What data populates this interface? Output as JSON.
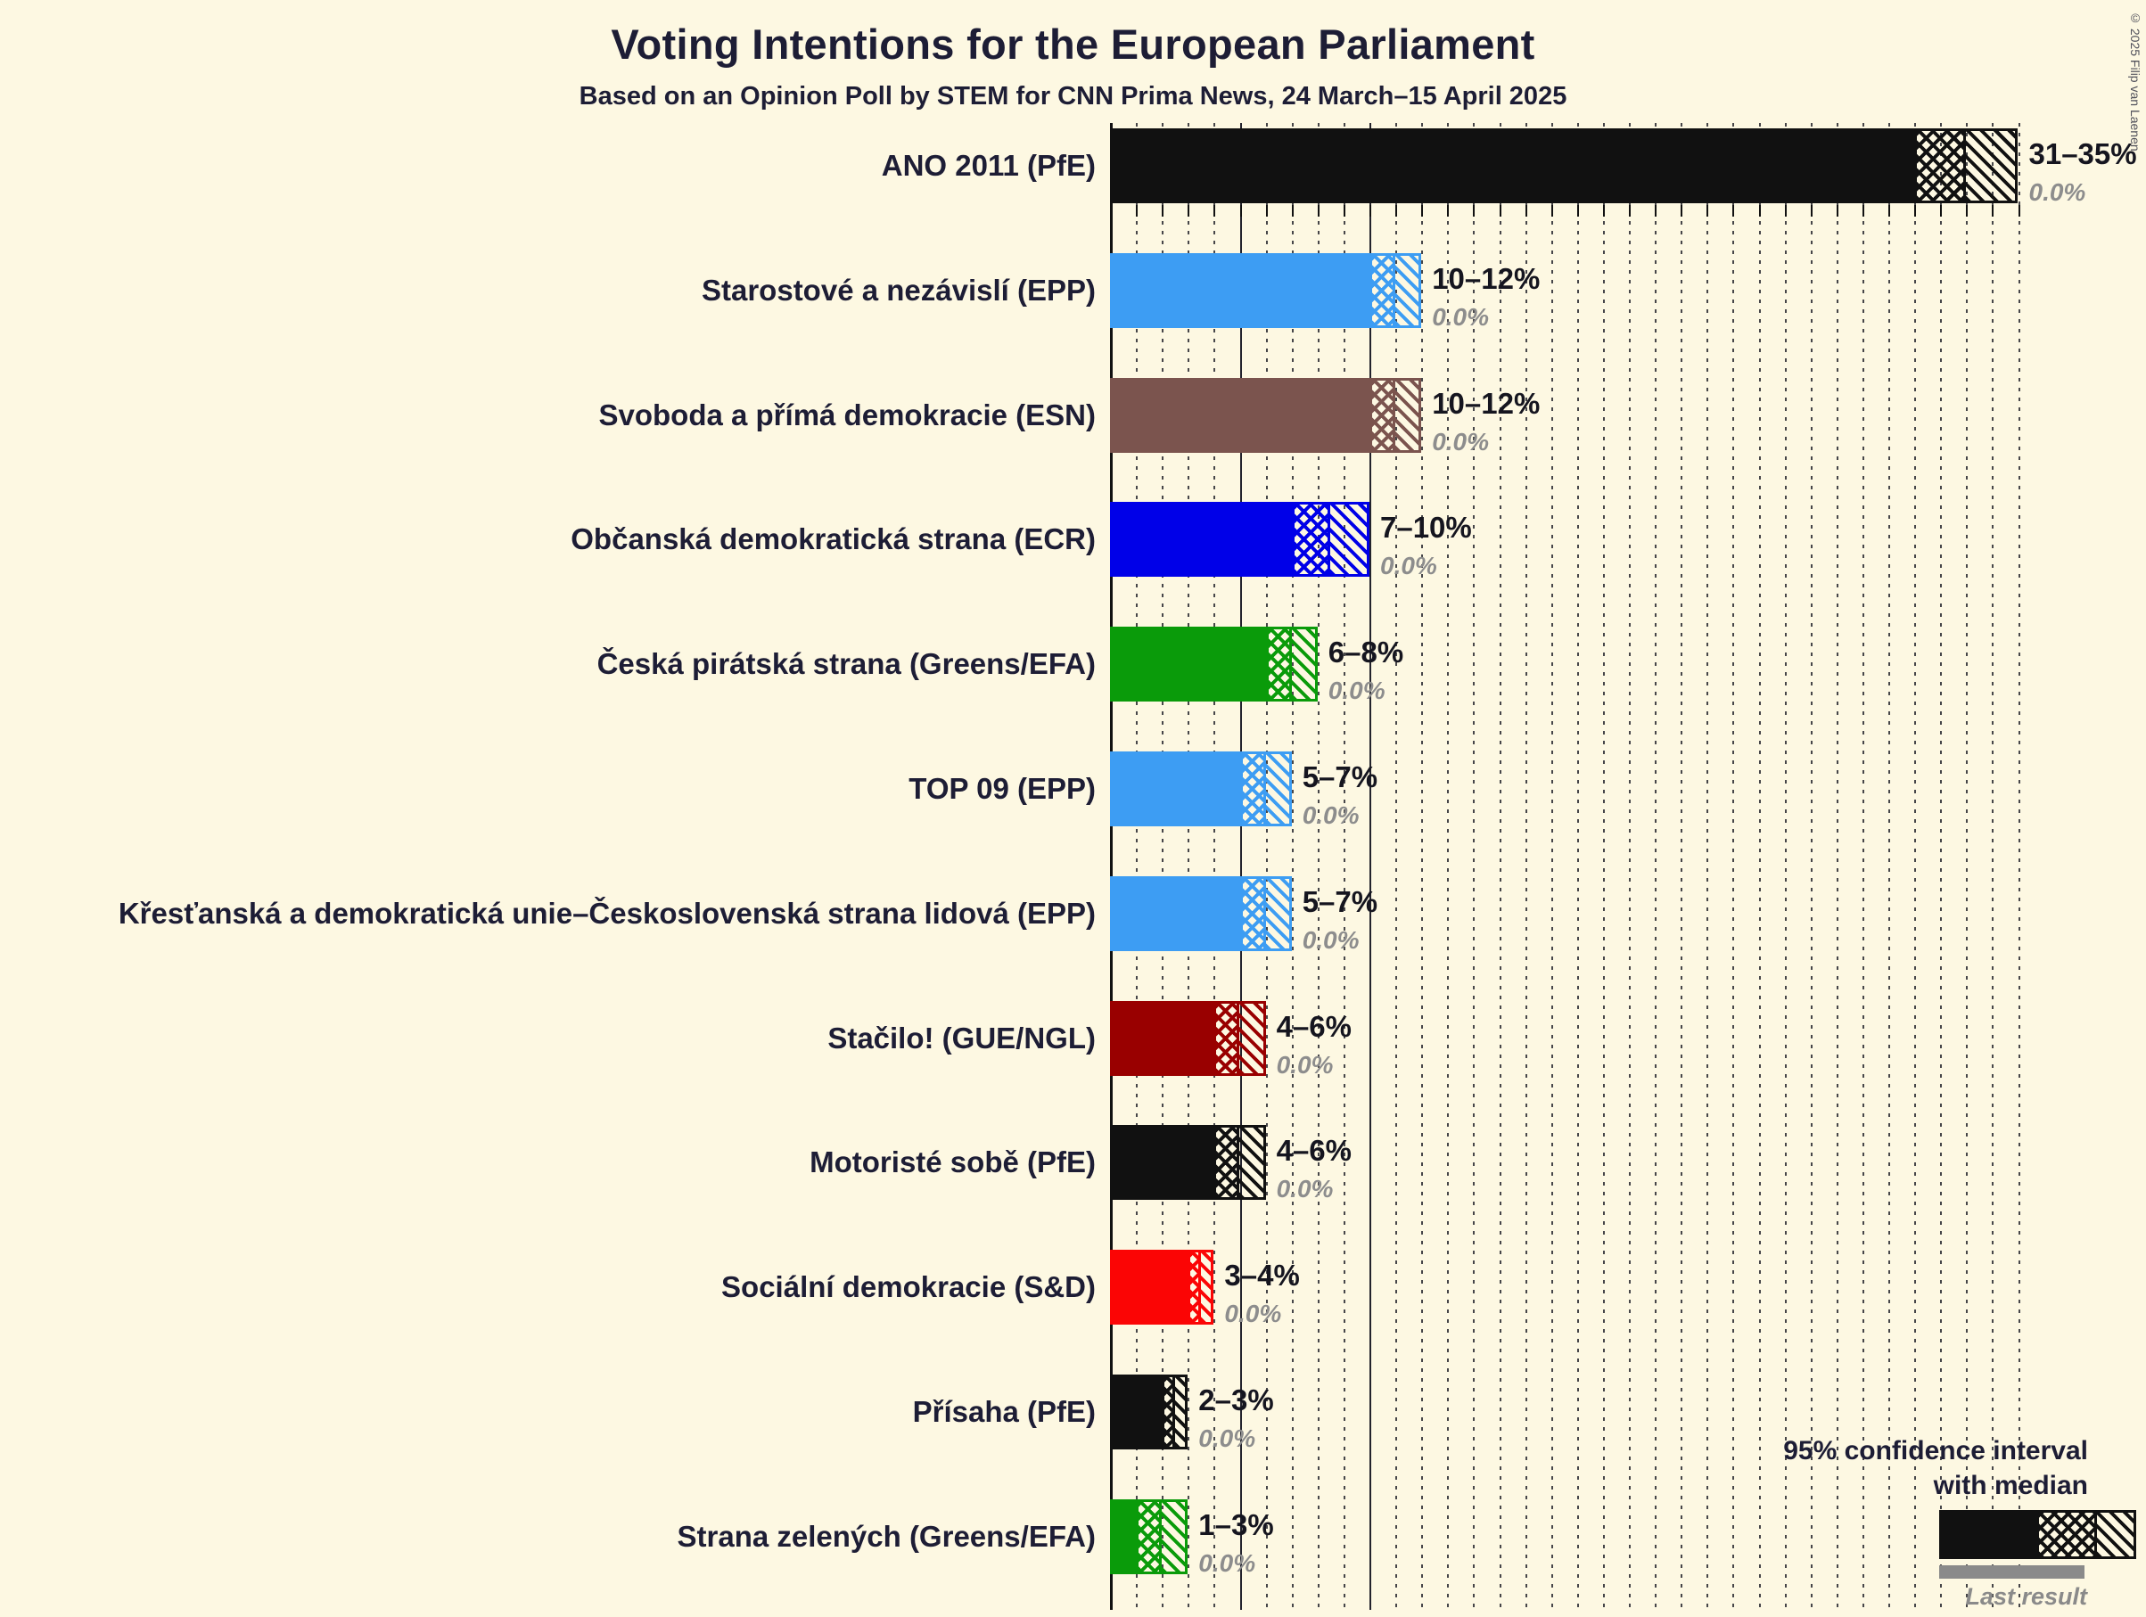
{
  "title_block": {
    "title": "Voting Intentions for the European Parliament",
    "subtitle": "Based on an Opinion Poll by STEM for CNN Prima News, 24 March–15 April 2025"
  },
  "copyright": "© 2025 Filip van Laenen",
  "legend": {
    "ci_line1": "95% confidence interval",
    "ci_line2": "with median",
    "last_result": "Last result",
    "sample_color": "#111111",
    "last_result_color": "#8a8a8a"
  },
  "colors": {
    "background": "#fdf8e2",
    "text": "#1d1d35",
    "muted": "#8d8d8d"
  },
  "chart_data": {
    "type": "bar",
    "orientation": "horizontal",
    "title": "Voting Intentions for the European Parliament",
    "subtitle": "Based on an Opinion Poll by STEM for CNN Prima News, 24 March–15 April 2025",
    "unit": "%",
    "xlim": [
      0,
      35
    ],
    "dotted_gridline_step": 1,
    "solid_gridlines": [
      5,
      10
    ],
    "grid": "on",
    "legend_position": "bottom-right",
    "bars": [
      {
        "label": "ANO 2011 (PfE)",
        "color": "#111111",
        "low": 31,
        "median": 33,
        "high": 35,
        "range_label": "31–35%",
        "last_result_label": "0.0%",
        "last_result": 0
      },
      {
        "label": "Starostové a nezávislí (EPP)",
        "color": "#3d9df3",
        "low": 10,
        "median": 11,
        "high": 12,
        "range_label": "10–12%",
        "last_result_label": "0.0%",
        "last_result": 0
      },
      {
        "label": "Svoboda a přímá demokracie (ESN)",
        "color": "#7b544e",
        "low": 10,
        "median": 11,
        "high": 12,
        "range_label": "10–12%",
        "last_result_label": "0.0%",
        "last_result": 0
      },
      {
        "label": "Občanská demokratická strana (ECR)",
        "color": "#0000e8",
        "low": 7,
        "median": 8.5,
        "high": 10,
        "range_label": "7–10%",
        "last_result_label": "0.0%",
        "last_result": 0
      },
      {
        "label": "Česká pirátská strana (Greens/EFA)",
        "color": "#0a9b0a",
        "low": 6,
        "median": 7,
        "high": 8,
        "range_label": "6–8%",
        "last_result_label": "0.0%",
        "last_result": 0
      },
      {
        "label": "TOP 09 (EPP)",
        "color": "#3d9df3",
        "low": 5,
        "median": 6,
        "high": 7,
        "range_label": "5–7%",
        "last_result_label": "0.0%",
        "last_result": 0
      },
      {
        "label": "Křesťanská a demokratická unie–Československá strana lidová (EPP)",
        "color": "#3d9df3",
        "low": 5,
        "median": 6,
        "high": 7,
        "range_label": "5–7%",
        "last_result_label": "0.0%",
        "last_result": 0
      },
      {
        "label": "Stačilo! (GUE/NGL)",
        "color": "#990000",
        "low": 4,
        "median": 5,
        "high": 6,
        "range_label": "4–6%",
        "last_result_label": "0.0%",
        "last_result": 0
      },
      {
        "label": "Motoristé sobě (PfE)",
        "color": "#111111",
        "low": 4,
        "median": 5,
        "high": 6,
        "range_label": "4–6%",
        "last_result_label": "0.0%",
        "last_result": 0
      },
      {
        "label": "Sociální demokracie (S&D)",
        "color": "#fb0505",
        "low": 3,
        "median": 3.5,
        "high": 4,
        "range_label": "3–4%",
        "last_result_label": "0.0%",
        "last_result": 0
      },
      {
        "label": "Přísaha (PfE)",
        "color": "#111111",
        "low": 2,
        "median": 2.5,
        "high": 3,
        "range_label": "2–3%",
        "last_result_label": "0.0%",
        "last_result": 0
      },
      {
        "label": "Strana zelených (Greens/EFA)",
        "color": "#0a9b0a",
        "low": 1,
        "median": 2,
        "high": 3,
        "range_label": "1–3%",
        "last_result_label": "0.0%",
        "last_result": 0
      }
    ]
  }
}
